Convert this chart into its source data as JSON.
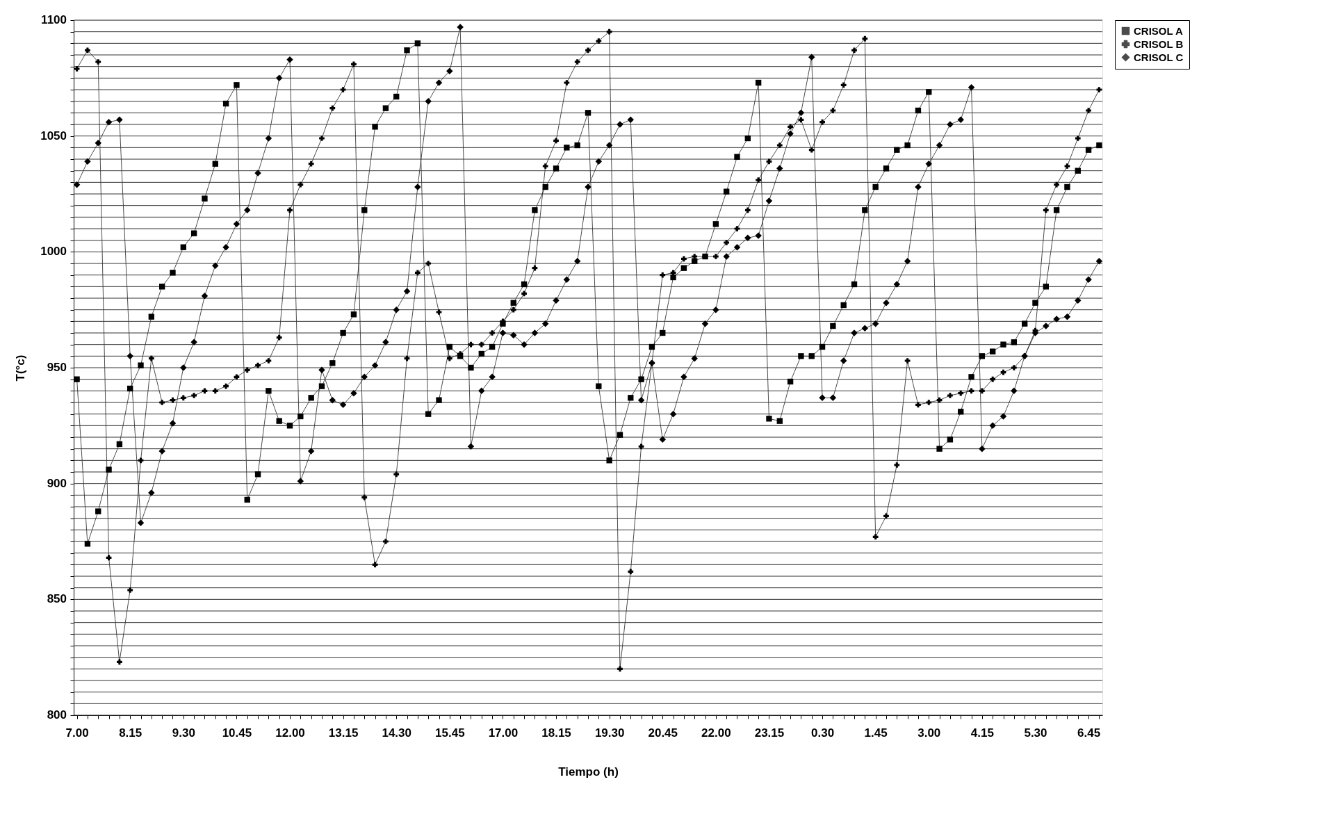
{
  "chart_data": {
    "type": "line",
    "xlabel": "Tiempo (h)",
    "ylabel": "T(°c)",
    "legend": "right",
    "grid": "y",
    "line_style": "solid",
    "categories": [
      "7.00",
      null,
      null,
      null,
      null,
      "8.15",
      null,
      null,
      null,
      null,
      "9.30",
      null,
      null,
      null,
      null,
      "10.45",
      null,
      null,
      null,
      null,
      "12.00",
      null,
      null,
      null,
      null,
      "13.15",
      null,
      null,
      null,
      null,
      "14.30",
      null,
      null,
      null,
      null,
      "15.45",
      null,
      null,
      null,
      null,
      "17.00",
      null,
      null,
      null,
      null,
      "18.15",
      null,
      null,
      null,
      null,
      "19.30",
      null,
      null,
      null,
      null,
      "20.45",
      null,
      null,
      null,
      null,
      "22.00",
      null,
      null,
      null,
      null,
      "23.15",
      null,
      null,
      null,
      null,
      "0.30",
      null,
      null,
      null,
      null,
      "1.45",
      null,
      null,
      null,
      null,
      "3.00",
      null,
      null,
      null,
      null,
      "4.15",
      null,
      null,
      null,
      null,
      "5.30",
      null,
      null,
      null,
      null,
      "6.45",
      null
    ],
    "ylim": [
      800,
      1100
    ],
    "yticks": [
      800,
      {
        "value": 805,
        "label": null
      },
      {
        "value": 810,
        "label": null
      },
      {
        "value": 815,
        "label": null
      },
      {
        "value": 820,
        "label": null
      },
      {
        "value": 825,
        "label": null
      },
      {
        "value": 830,
        "label": null
      },
      {
        "value": 835,
        "label": null
      },
      {
        "value": 840,
        "label": null
      },
      {
        "value": 845,
        "label": null
      },
      850,
      {
        "value": 855,
        "label": null
      },
      {
        "value": 860,
        "label": null
      },
      {
        "value": 865,
        "label": null
      },
      {
        "value": 870,
        "label": null
      },
      {
        "value": 875,
        "label": null
      },
      {
        "value": 880,
        "label": null
      },
      {
        "value": 885,
        "label": null
      },
      {
        "value": 890,
        "label": null
      },
      {
        "value": 895,
        "label": null
      },
      900,
      {
        "value": 905,
        "label": null
      },
      {
        "value": 910,
        "label": null
      },
      {
        "value": 915,
        "label": null
      },
      {
        "value": 920,
        "label": null
      },
      {
        "value": 925,
        "label": null
      },
      {
        "value": 930,
        "label": null
      },
      {
        "value": 935,
        "label": null
      },
      {
        "value": 940,
        "label": null
      },
      {
        "value": 945,
        "label": null
      },
      950,
      {
        "value": 955,
        "label": null
      },
      {
        "value": 960,
        "label": null
      },
      {
        "value": 965,
        "label": null
      },
      {
        "value": 970,
        "label": null
      },
      {
        "value": 975,
        "label": null
      },
      {
        "value": 980,
        "label": null
      },
      {
        "value": 985,
        "label": null
      },
      {
        "value": 990,
        "label": null
      },
      {
        "value": 995,
        "label": null
      },
      1000,
      {
        "value": 1005,
        "label": null
      },
      {
        "value": 1010,
        "label": null
      },
      {
        "value": 1015,
        "label": null
      },
      {
        "value": 1020,
        "label": null
      },
      {
        "value": 1025,
        "label": null
      },
      {
        "value": 1030,
        "label": null
      },
      {
        "value": 1035,
        "label": null
      },
      {
        "value": 1040,
        "label": null
      },
      {
        "value": 1045,
        "label": null
      },
      1050,
      {
        "value": 1055,
        "label": null
      },
      {
        "value": 1060,
        "label": null
      },
      {
        "value": 1065,
        "label": null
      },
      {
        "value": 1070,
        "label": null
      },
      {
        "value": 1075,
        "label": null
      },
      {
        "value": 1080,
        "label": null
      },
      {
        "value": 1085,
        "label": null
      },
      {
        "value": 1090,
        "label": null
      },
      {
        "value": 1095,
        "label": null
      },
      1100
    ],
    "series": [
      {
        "name": "CRISOL A",
        "color": "#000000",
        "marker": "square",
        "values": [
          945,
          874,
          888,
          906,
          917,
          941,
          951,
          972,
          985,
          991,
          1002,
          1008,
          1023,
          1038,
          1064,
          1072,
          893,
          904,
          940,
          927,
          925,
          929,
          937,
          942,
          952,
          965,
          973,
          1018,
          1054,
          1062,
          1067,
          1087,
          1090,
          930,
          936,
          959,
          955,
          950,
          956,
          959,
          969,
          978,
          986,
          1018,
          1028,
          1036,
          1045,
          1046,
          1060,
          942,
          910,
          921,
          937,
          945,
          959,
          965,
          989,
          993,
          996,
          998,
          1012,
          1026,
          1041,
          1049,
          1073,
          928,
          927,
          944,
          955,
          955,
          959,
          968,
          977,
          986,
          1018,
          1028,
          1036,
          1044,
          1046,
          1061,
          1069,
          915,
          919,
          931,
          946,
          955,
          957,
          960,
          961,
          969,
          978,
          985,
          1018,
          1028,
          1035,
          1044,
          1046
        ]
      },
      {
        "name": "CRISOL B",
        "color": "#000000",
        "marker": "cross",
        "values": [
          1079,
          1087,
          1082,
          868,
          823,
          854,
          910,
          954,
          935,
          936,
          937,
          938,
          940,
          940,
          942,
          946,
          949,
          951,
          953,
          963,
          1018,
          1029,
          1038,
          1049,
          1062,
          1070,
          1081,
          894,
          865,
          875,
          904,
          954,
          991,
          995,
          974,
          954,
          956,
          960,
          960,
          965,
          970,
          975,
          982,
          993,
          1037,
          1048,
          1073,
          1082,
          1087,
          1091,
          1095,
          820,
          862,
          916,
          952,
          990,
          991,
          997,
          998,
          998,
          998,
          1004,
          1010,
          1018,
          1031,
          1039,
          1046,
          1054,
          1057,
          1044,
          1056,
          1061,
          1072,
          1087,
          1092,
          877,
          886,
          908,
          953,
          934,
          935,
          936,
          938,
          939,
          940,
          940,
          945,
          948,
          950,
          955,
          966,
          1018,
          1029,
          1037,
          1049,
          1061,
          1070
        ]
      },
      {
        "name": "CRISOL C",
        "color": "#000000",
        "marker": "diamond",
        "values": [
          1029,
          1039,
          1047,
          1056,
          1057,
          955,
          883,
          896,
          914,
          926,
          950,
          961,
          981,
          994,
          1002,
          1012,
          1018,
          1034,
          1049,
          1075,
          1083,
          901,
          914,
          949,
          936,
          934,
          939,
          946,
          951,
          961,
          975,
          983,
          1028,
          1065,
          1073,
          1078,
          1097,
          916,
          940,
          946,
          965,
          964,
          960,
          965,
          969,
          979,
          988,
          996,
          1028,
          1039,
          1046,
          1055,
          1057,
          936,
          952,
          919,
          930,
          946,
          954,
          969,
          975,
          998,
          1002,
          1006,
          1007,
          1022,
          1036,
          1051,
          1060,
          1084,
          937,
          937,
          953,
          965,
          967,
          969,
          978,
          986,
          996,
          1028,
          1038,
          1046,
          1055,
          1057,
          1071,
          915,
          925,
          929,
          940,
          955,
          965,
          968,
          971,
          972,
          979,
          988,
          996
        ]
      }
    ]
  }
}
